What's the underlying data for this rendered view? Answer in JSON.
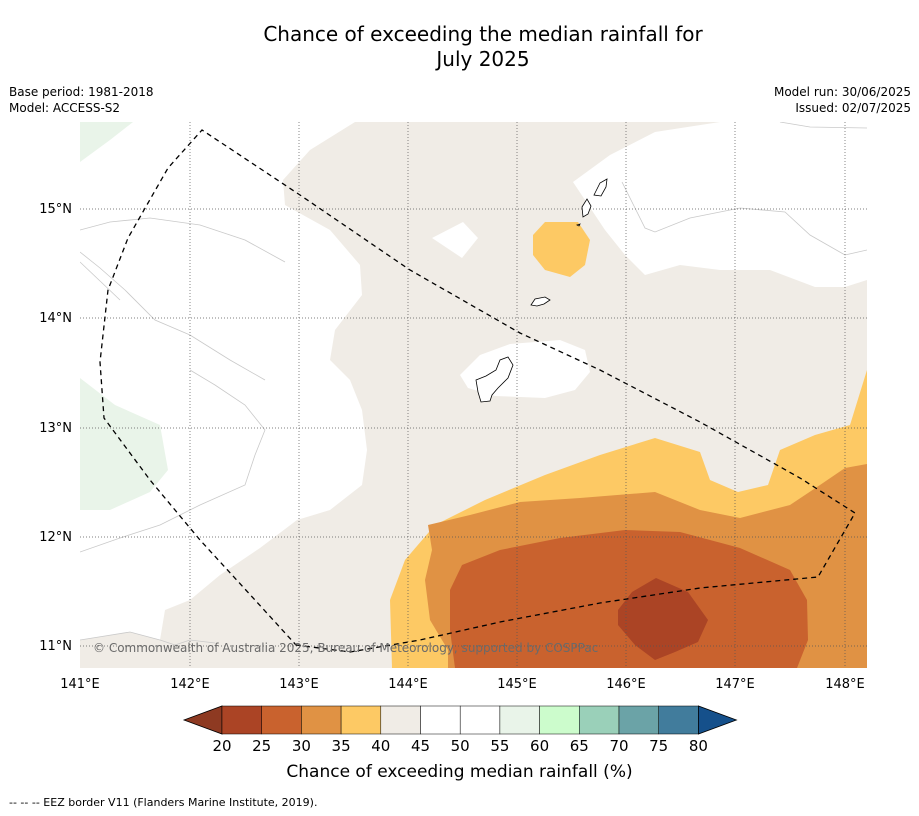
{
  "title_line1": "Chance of exceeding the median rainfall for",
  "title_line2": "July 2025",
  "meta_left": [
    "Base period: 1981-2018",
    "Model: ACCESS-S2"
  ],
  "meta_right": [
    "Model run: 30/06/2025",
    "Issued: 02/07/2025"
  ],
  "copyright": "© Commonwealth of Australia 2025, Bureau of Meteorology, supported by COSPPac",
  "footnote": "--  --  -- EEZ border V11 (Flanders Marine Institute, 2019).",
  "map": {
    "lon_range": [
      141.0,
      148.2
    ],
    "lat_range": [
      10.8,
      15.8
    ],
    "lon_ticks": [
      "141°E",
      "142°E",
      "143°E",
      "144°E",
      "145°E",
      "146°E",
      "147°E",
      "148°E"
    ],
    "lat_ticks": [
      "15°N",
      "14°N",
      "13°N",
      "12°N",
      "11°N"
    ],
    "gridlines": true
  },
  "colorbar": {
    "title": "Chance of exceeding median rainfall (%)",
    "ticks": [
      "20",
      "25",
      "30",
      "35",
      "40",
      "45",
      "50",
      "55",
      "60",
      "65",
      "70",
      "75",
      "80"
    ],
    "colors": [
      "#ab4425",
      "#c9622e",
      "#e09244",
      "#fdc964",
      "#f0ece6",
      "#ffffff",
      "#ffffff",
      "#e9f4e9",
      "#ccfccc",
      "#9ad0b9",
      "#6ba3a7",
      "#417c9c"
    ],
    "under_color": "#8e3a22",
    "over_color": "#15508b"
  }
}
